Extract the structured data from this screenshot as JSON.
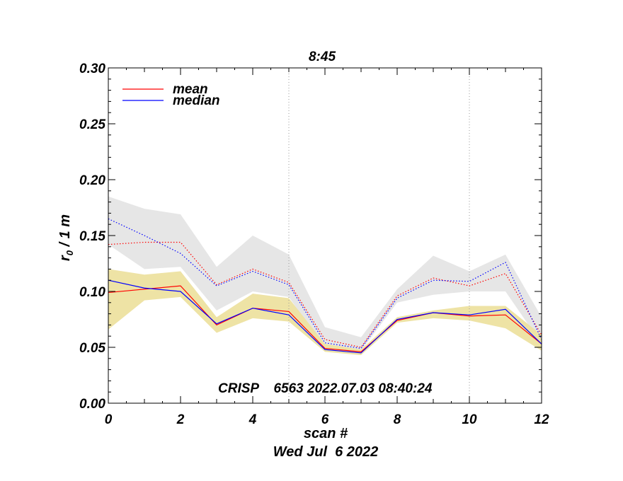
{
  "chart_data": {
    "type": "line",
    "title": "8:45",
    "xlabel": "scan #",
    "ylabel_main": "r",
    "ylabel_sub": "0",
    "ylabel_rest": " / 1 m",
    "footer_date": "Wed Jul  6 2022",
    "annotation": "CRISP    6563 2022.07.03 08:40:24",
    "xlim": [
      0,
      12
    ],
    "ylim": [
      0,
      0.3
    ],
    "x_ticks": [
      0,
      2,
      4,
      6,
      8,
      10,
      12
    ],
    "x_ticklabels": [
      "0",
      "2",
      "4",
      "6",
      "8",
      "10",
      "12"
    ],
    "y_ticks": [
      0,
      0.05,
      0.1,
      0.15,
      0.2,
      0.25,
      0.3
    ],
    "y_ticklabels": [
      "0.00",
      "0.05",
      "0.10",
      "0.15",
      "0.20",
      "0.25",
      "0.30"
    ],
    "vlines": [
      5,
      10
    ],
    "legend": [
      {
        "label": "mean",
        "color": "#ff0000"
      },
      {
        "label": "median",
        "color": "#0000ff"
      }
    ],
    "x": [
      0,
      1,
      2,
      3,
      4,
      5,
      6,
      7,
      8,
      9,
      10,
      11,
      12
    ],
    "bands": [
      {
        "name": "upper range",
        "color": "#e6e6e6",
        "lower": [
          0.142,
          0.12,
          0.122,
          0.083,
          0.1,
          0.095,
          0.049,
          0.047,
          0.09,
          0.097,
          0.1,
          0.1,
          0.053
        ],
        "upper": [
          0.185,
          0.174,
          0.169,
          0.122,
          0.15,
          0.133,
          0.068,
          0.059,
          0.102,
          0.132,
          0.118,
          0.133,
          0.077
        ]
      },
      {
        "name": "lower range",
        "color": "#eee3a5",
        "lower": [
          0.066,
          0.092,
          0.095,
          0.063,
          0.076,
          0.073,
          0.046,
          0.043,
          0.072,
          0.076,
          0.074,
          0.067,
          0.047
        ],
        "upper": [
          0.12,
          0.115,
          0.118,
          0.077,
          0.098,
          0.094,
          0.053,
          0.048,
          0.077,
          0.083,
          0.087,
          0.087,
          0.061
        ]
      }
    ],
    "series": [
      {
        "name": "mean (solid)",
        "color": "#ff0000",
        "dash": false,
        "values": [
          0.099,
          0.102,
          0.105,
          0.07,
          0.085,
          0.082,
          0.049,
          0.046,
          0.074,
          0.081,
          0.078,
          0.079,
          0.053
        ]
      },
      {
        "name": "median (solid)",
        "color": "#0000ff",
        "dash": false,
        "values": [
          0.11,
          0.103,
          0.1,
          0.071,
          0.085,
          0.079,
          0.048,
          0.045,
          0.075,
          0.081,
          0.079,
          0.084,
          0.053
        ]
      },
      {
        "name": "mean (dotted)",
        "color": "#ff0000",
        "dash": true,
        "values": [
          0.142,
          0.144,
          0.144,
          0.106,
          0.12,
          0.108,
          0.057,
          0.05,
          0.096,
          0.112,
          0.105,
          0.116,
          0.061
        ]
      },
      {
        "name": "median (dotted)",
        "color": "#0000ff",
        "dash": true,
        "values": [
          0.165,
          0.15,
          0.134,
          0.105,
          0.118,
          0.106,
          0.054,
          0.049,
          0.094,
          0.11,
          0.109,
          0.126,
          0.057
        ]
      }
    ]
  }
}
